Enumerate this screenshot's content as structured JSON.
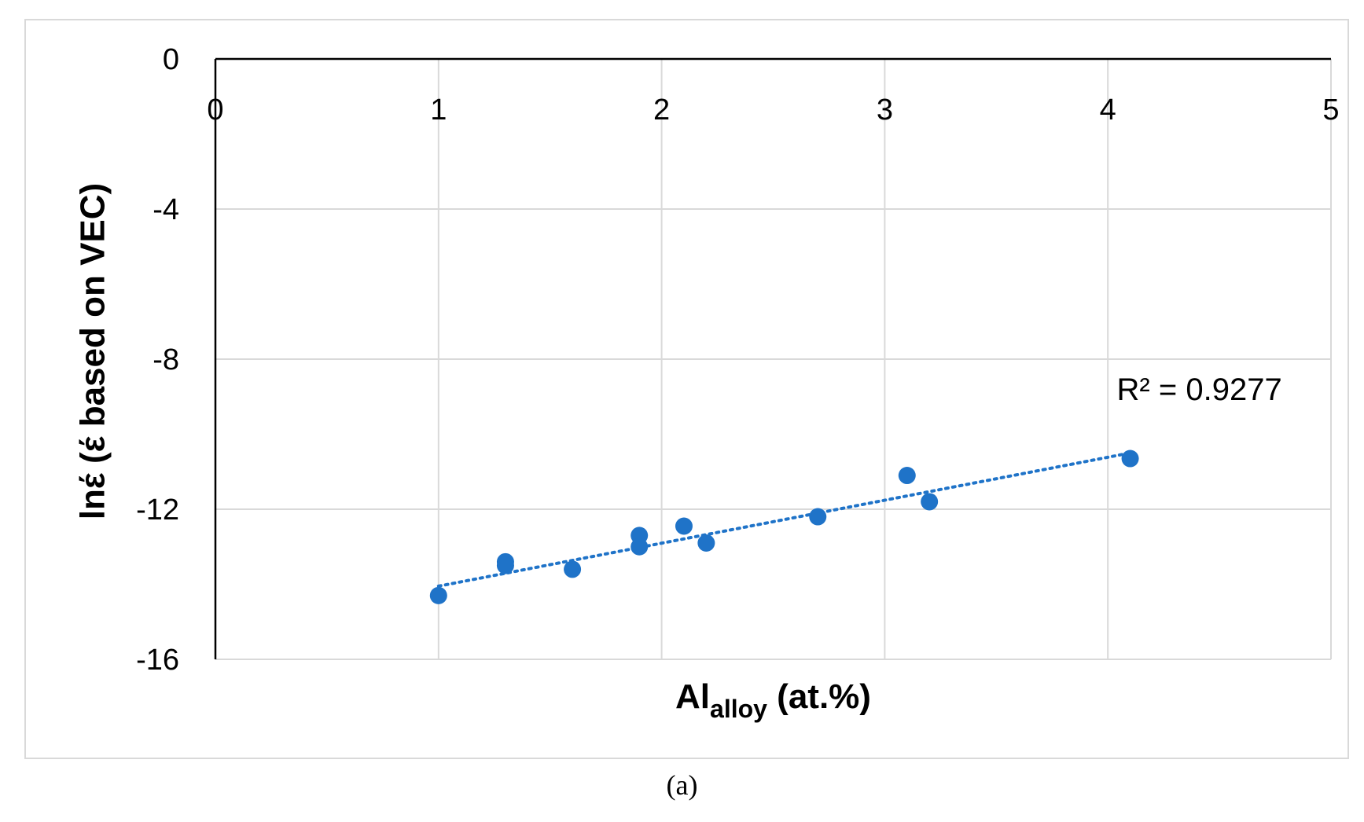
{
  "chart_data": {
    "type": "scatter",
    "title": "",
    "xlabel": "Al",
    "xlabel_subscript": "alloy",
    "xlabel_suffix": " (at.%)",
    "ylabel": "lnέ (έ based on VEC)",
    "xlim": [
      0,
      5
    ],
    "ylim": [
      -16,
      0
    ],
    "xticks": [
      "0",
      "1",
      "2",
      "3",
      "4",
      "5"
    ],
    "yticks": [
      "0",
      "-4",
      "-8",
      "-12",
      "-16"
    ],
    "xtick_values": [
      0,
      1,
      2,
      3,
      4,
      5
    ],
    "ytick_values": [
      0,
      -4,
      -8,
      -12,
      -16
    ],
    "grid": true,
    "x_axis_position": "top",
    "series": [
      {
        "color": "#1f73c8",
        "points": [
          {
            "x": 1.0,
            "y": -14.3
          },
          {
            "x": 1.3,
            "y": -13.4
          },
          {
            "x": 1.3,
            "y": -13.5
          },
          {
            "x": 1.6,
            "y": -13.6
          },
          {
            "x": 1.9,
            "y": -12.7
          },
          {
            "x": 1.9,
            "y": -13.0
          },
          {
            "x": 2.1,
            "y": -12.45
          },
          {
            "x": 2.2,
            "y": -12.9
          },
          {
            "x": 2.7,
            "y": -12.2
          },
          {
            "x": 3.1,
            "y": -11.1
          },
          {
            "x": 3.2,
            "y": -11.8
          },
          {
            "x": 4.1,
            "y": -10.65
          }
        ]
      }
    ],
    "trendline": {
      "style": "dotted",
      "color": "#1f73c8",
      "x": [
        1.0,
        4.1
      ],
      "y": [
        -14.05,
        -10.5
      ],
      "label": "R² = 0.9277",
      "label_x": 4.04,
      "label_y": -8.8
    },
    "caption": "(a)"
  }
}
